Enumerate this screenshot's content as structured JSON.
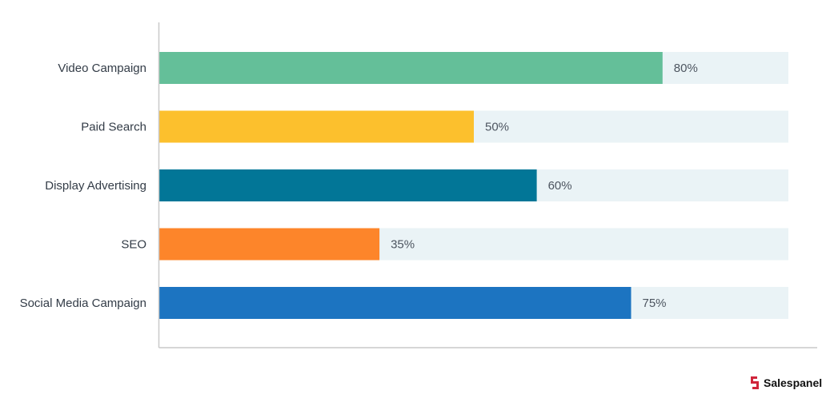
{
  "chart_data": {
    "type": "bar",
    "orientation": "horizontal",
    "categories": [
      "Video Campaign",
      "Paid Search",
      "Display Advertising",
      "SEO",
      "Social Media Campaign"
    ],
    "values": [
      80,
      50,
      60,
      35,
      75
    ],
    "value_labels": [
      "80%",
      "50%",
      "60%",
      "35%",
      "75%"
    ],
    "colors": [
      "#64bf99",
      "#fcc02d",
      "#027697",
      "#fd852a",
      "#1c74c1"
    ],
    "track_color": "#eaf3f6",
    "axis_color": "#c9c9c9",
    "xlim": [
      0,
      100
    ],
    "title": "",
    "xlabel": "",
    "ylabel": "",
    "grid": false,
    "legend": "none"
  },
  "brand": {
    "name": "Salespanel",
    "icon": "salespanel-logo-icon",
    "color": "#d0253b"
  }
}
